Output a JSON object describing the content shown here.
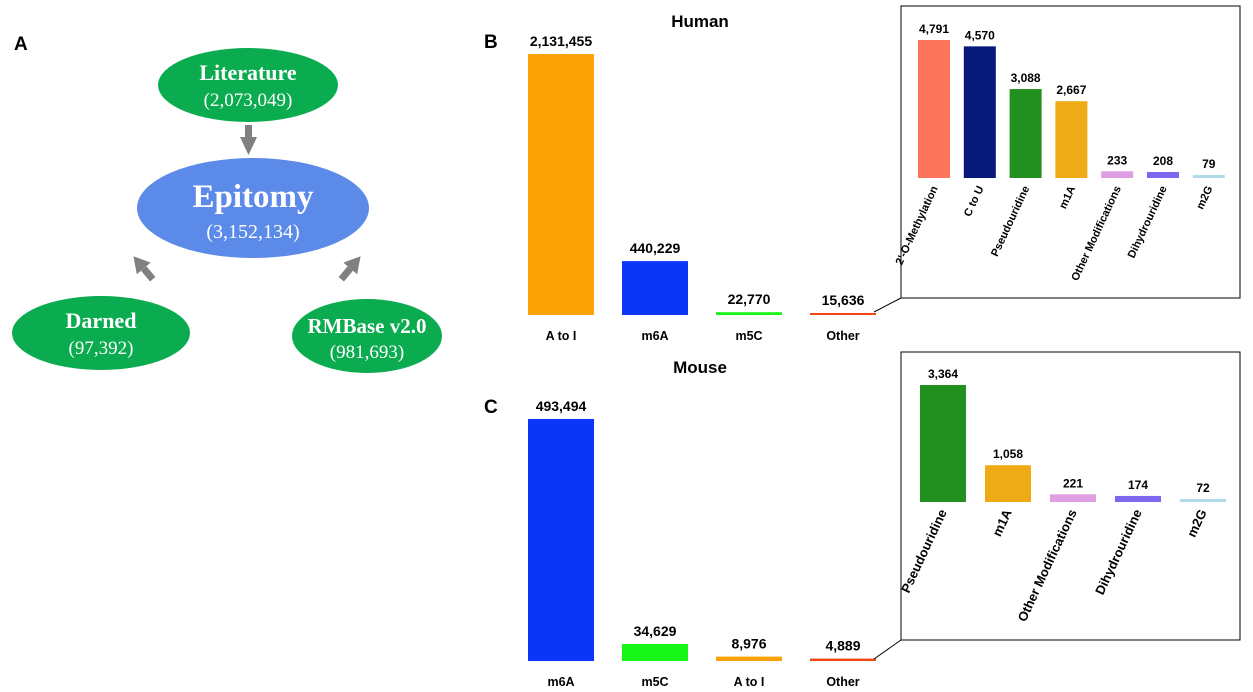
{
  "panel_a": {
    "letter": "A",
    "nodes": {
      "literature": {
        "title": "Literature",
        "count": "(2,073,049)",
        "color": "#0bab4f"
      },
      "epitomy": {
        "title": "Epitomy",
        "count": "(3,152,134)",
        "color": "#5b8ae8"
      },
      "darned": {
        "title": "Darned",
        "count": "(97,392)",
        "color": "#0bab4f"
      },
      "rmbase": {
        "title": "RMBase v2.0",
        "count": "(981,693)",
        "color": "#0bab4f"
      }
    },
    "arrow_color": "#808080"
  },
  "chart_data": [
    {
      "panel": "B",
      "type": "bar",
      "title": "Human",
      "categories": [
        "A to I",
        "m6A",
        "m5C",
        "Other"
      ],
      "values": [
        2131455,
        440229,
        22770,
        15636
      ],
      "value_labels": [
        "2,131,455",
        "440,229",
        "22,770",
        "15,636"
      ],
      "colors": [
        "#fba307",
        "#0a37f7",
        "#18f518",
        "#f44412"
      ],
      "ylim": [
        0,
        2131455
      ],
      "grid": false,
      "inset": {
        "type": "bar",
        "categories": [
          "2'-O-Methylation",
          "C to U",
          "Pseudouridine",
          "m1A",
          "Other Modifications",
          "Dihydrouridine",
          "m2G"
        ],
        "values": [
          4791,
          4570,
          3088,
          2667,
          233,
          208,
          79
        ],
        "value_labels": [
          "4,791",
          "4,570",
          "3,088",
          "2,667",
          "233",
          "208",
          "79"
        ],
        "colors": [
          "#fd755d",
          "#061879",
          "#21901f",
          "#efab16",
          "#df9ee2",
          "#7b68ee",
          "#b1dbe8"
        ],
        "ylim": [
          0,
          4791
        ]
      }
    },
    {
      "panel": "C",
      "type": "bar",
      "title": "Mouse",
      "categories": [
        "m6A",
        "m5C",
        "A to I",
        "Other"
      ],
      "values": [
        493494,
        34629,
        8976,
        4889
      ],
      "value_labels": [
        "493,494",
        "34,629",
        "8,976",
        "4,889"
      ],
      "colors": [
        "#0a37f7",
        "#18f518",
        "#fba307",
        "#f44412"
      ],
      "ylim": [
        0,
        493494
      ],
      "grid": false,
      "inset": {
        "type": "bar",
        "categories": [
          "Pseudouridine",
          "m1A",
          "Other Modifications",
          "Dihydrouridine",
          "m2G"
        ],
        "values": [
          3364,
          1058,
          221,
          174,
          72
        ],
        "value_labels": [
          "3,364",
          "1,058",
          "221",
          "174",
          "72"
        ],
        "colors": [
          "#21901f",
          "#efab16",
          "#df9ee2",
          "#7b68ee",
          "#b1dbe8"
        ],
        "ylim": [
          0,
          3364
        ]
      }
    }
  ]
}
